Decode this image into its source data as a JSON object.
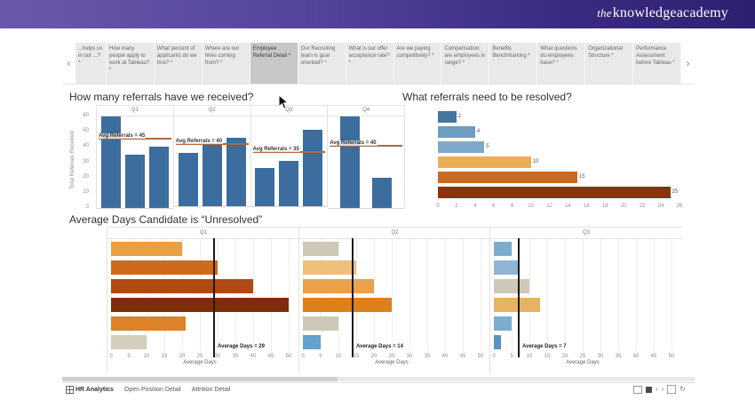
{
  "banner": {
    "logo_prefix": "the",
    "logo_text": "knowledgeacademy"
  },
  "tab_strip": {
    "left_arrow": "‹",
    "right_arrow": "›",
    "tabs": [
      {
        "label": "...helps us in our ...? *",
        "selected": false
      },
      {
        "label": "How many people apply to work at Tableau? *",
        "selected": false
      },
      {
        "label": "What percent of applicants do we hire? *",
        "selected": false
      },
      {
        "label": "Where are our hires coming from? *",
        "selected": false
      },
      {
        "label": "Employee Referral Detail *",
        "selected": true
      },
      {
        "label": "Our Recruiting team is goal oriented? *",
        "selected": false
      },
      {
        "label": "What is our offer acceptance rate? *",
        "selected": false
      },
      {
        "label": "Are we paying competitively? *",
        "selected": false
      },
      {
        "label": "Compensation: are employees in range? *",
        "selected": false
      },
      {
        "label": "Benefits Benchmarking *",
        "selected": false
      },
      {
        "label": "What questions do employees have? *",
        "selected": false
      },
      {
        "label": "Organizational Structure *",
        "selected": false
      },
      {
        "label": "Performance Assessment before Tableau *",
        "selected": false
      }
    ]
  },
  "chart_data": [
    {
      "type": "bar",
      "title": "How many referrals have we received?",
      "ylabel": "Total Referrals Received",
      "ylim": [
        0,
        60
      ],
      "yticks": [
        60,
        50,
        40,
        30,
        20,
        10,
        0
      ],
      "bar_color": "#3c6d9e",
      "ref_line_color": "#a96a43",
      "panels": [
        {
          "header": "Q1",
          "values": [
            60,
            35,
            40
          ],
          "ref_value": 45,
          "ref_label": "Avg Referrals = 45"
        },
        {
          "header": "Q2",
          "values": [
            35,
            40,
            45
          ],
          "ref_value": 40,
          "ref_label": "Avg Referrals = 40"
        },
        {
          "header": "Q3",
          "values": [
            25,
            30,
            50
          ],
          "ref_value": 35,
          "ref_label": "Avg Referrals = 35"
        },
        {
          "header": "Q4",
          "values": [
            60,
            20
          ],
          "ref_value": 40,
          "ref_label": "Avg Referrals = 40"
        }
      ]
    },
    {
      "type": "bar",
      "orientation": "horizontal",
      "title": "What referrals need to be resolved?",
      "xlim": [
        0,
        26
      ],
      "xticks": [
        0,
        2,
        4,
        6,
        8,
        10,
        12,
        14,
        16,
        18,
        20,
        22,
        24,
        26
      ],
      "bars": [
        {
          "value": 2,
          "color": "#47759e"
        },
        {
          "value": 4,
          "color": "#6f9dc1"
        },
        {
          "value": 5,
          "color": "#7fa9c9"
        },
        {
          "value": 10,
          "color": "#edae58"
        },
        {
          "value": 15,
          "color": "#cb6a1d"
        },
        {
          "value": 25,
          "color": "#8b3310"
        }
      ]
    },
    {
      "type": "bar",
      "orientation": "horizontal",
      "title": "Average Days Candidate is “Unresolved”",
      "xlabel": "Average Days",
      "xlim": [
        0,
        50
      ],
      "xticks": [
        0,
        5,
        10,
        15,
        20,
        25,
        30,
        35,
        40,
        45,
        50
      ],
      "panels": [
        {
          "header": "Q1",
          "ref_value": 29,
          "ref_label": "Average Days = 29",
          "bars": [
            {
              "value": 20,
              "color": "#e9a045"
            },
            {
              "value": 30,
              "color": "#cf6a1a"
            },
            {
              "value": 40,
              "color": "#b04a12"
            },
            {
              "value": 50,
              "color": "#7e2d09"
            },
            {
              "value": 21,
              "color": "#dd8228"
            },
            {
              "value": 10,
              "color": "#d5cdbd"
            }
          ]
        },
        {
          "header": "Q2",
          "ref_value": 14,
          "ref_label": "Average Days = 14",
          "bars": [
            {
              "value": 10,
              "color": "#cfc8b8"
            },
            {
              "value": 15,
              "color": "#eec07e"
            },
            {
              "value": 20,
              "color": "#e9a24c"
            },
            {
              "value": 25,
              "color": "#dd7f1b"
            },
            {
              "value": 10,
              "color": "#cfc8b8"
            },
            {
              "value": 5,
              "color": "#64a0d0"
            }
          ]
        },
        {
          "header": "Q3",
          "ref_value": 7,
          "ref_label": "Average Days = 7",
          "bars": [
            {
              "value": 5,
              "color": "#7badd3"
            },
            {
              "value": 7,
              "color": "#8fb5d5"
            },
            {
              "value": 10,
              "color": "#cfc8b8"
            },
            {
              "value": 13,
              "color": "#e6b264"
            },
            {
              "value": 5,
              "color": "#7badd3"
            },
            {
              "value": 2,
              "color": "#5b91c3"
            }
          ]
        }
      ]
    }
  ],
  "sheet_bar": {
    "sheets": [
      {
        "label": "HR Analytics",
        "active": true
      },
      {
        "label": "Open Position Detail",
        "active": false
      },
      {
        "label": "Attrition Detail",
        "active": false
      }
    ],
    "icons": [
      {
        "name": "window-icon",
        "glyph": ""
      },
      {
        "name": "stop-icon",
        "glyph": ""
      },
      {
        "name": "prev-icon",
        "glyph": "‹"
      },
      {
        "name": "next-icon",
        "glyph": "›"
      },
      {
        "name": "fullscreen-icon",
        "glyph": ""
      },
      {
        "name": "refresh-icon",
        "glyph": "↻"
      }
    ]
  }
}
